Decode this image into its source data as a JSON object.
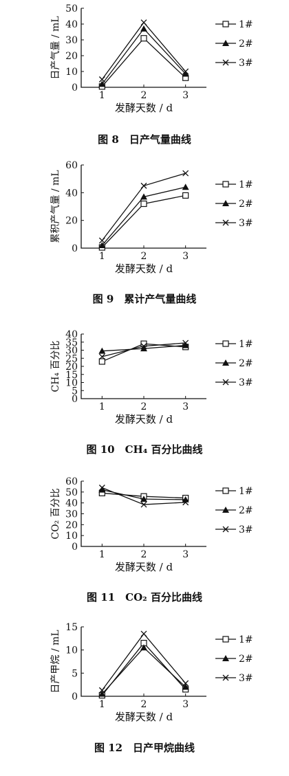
{
  "chart_data": [
    {
      "type": "line",
      "title": "图 8　日产气量曲线",
      "xlabel": "发酵天数 / d",
      "ylabel": "日产气量 / mL",
      "x": [
        1,
        2,
        3
      ],
      "xlim": [
        0.5,
        3.5
      ],
      "ylim": [
        0,
        50
      ],
      "yticks": [
        0,
        10,
        20,
        30,
        40,
        50
      ],
      "series": [
        {
          "name": "1#",
          "marker": "square",
          "values": [
            0.5,
            31,
            6
          ]
        },
        {
          "name": "2#",
          "marker": "triangle",
          "values": [
            2,
            37,
            8.5
          ]
        },
        {
          "name": "3#",
          "marker": "x",
          "values": [
            5,
            41,
            10
          ]
        }
      ],
      "legend": "right"
    },
    {
      "type": "line",
      "title": "图 9　累计产气量曲线",
      "xlabel": "发酵天数 / d",
      "ylabel": "累积产气量 / mL",
      "x": [
        1,
        2,
        3
      ],
      "xlim": [
        0.5,
        3.5
      ],
      "ylim": [
        0,
        60
      ],
      "yticks": [
        0,
        20,
        40,
        60
      ],
      "series": [
        {
          "name": "1#",
          "marker": "square",
          "values": [
            0.5,
            32,
            38
          ]
        },
        {
          "name": "2#",
          "marker": "triangle",
          "values": [
            2,
            37,
            44
          ]
        },
        {
          "name": "3#",
          "marker": "x",
          "values": [
            5.5,
            45,
            54
          ]
        }
      ],
      "legend": "right"
    },
    {
      "type": "line",
      "title": "图 10　CH₄ 百分比曲线",
      "xlabel": "发酵天数 / d",
      "ylabel": "CH₄ 百分比",
      "x": [
        1,
        2,
        3
      ],
      "xlim": [
        0.5,
        3.5
      ],
      "ylim": [
        0,
        40
      ],
      "yticks": [
        0,
        5,
        10,
        15,
        20,
        25,
        30,
        35,
        40
      ],
      "series": [
        {
          "name": "1#",
          "marker": "square",
          "values": [
            23,
            34,
            32
          ]
        },
        {
          "name": "2#",
          "marker": "triangle",
          "values": [
            29.5,
            31,
            33
          ]
        },
        {
          "name": "3#",
          "marker": "x",
          "values": [
            26,
            32.5,
            34.5
          ]
        }
      ],
      "legend": "right"
    },
    {
      "type": "line",
      "title": "图 11　CO₂ 百分比曲线",
      "xlabel": "发酵天数 / d",
      "ylabel": "CO₂ 百分比",
      "x": [
        1,
        2,
        3
      ],
      "xlim": [
        0.5,
        3.5
      ],
      "ylim": [
        0,
        60
      ],
      "yticks": [
        0,
        10,
        20,
        30,
        40,
        50,
        60
      ],
      "series": [
        {
          "name": "1#",
          "marker": "square",
          "values": [
            49,
            46,
            44.5
          ]
        },
        {
          "name": "2#",
          "marker": "triangle",
          "values": [
            52,
            43.5,
            43
          ]
        },
        {
          "name": "3#",
          "marker": "x",
          "values": [
            54,
            38.5,
            40.5
          ]
        }
      ],
      "legend": "right"
    },
    {
      "type": "line",
      "title": "图 12　日产甲烷曲线",
      "xlabel": "发酵天数 / d",
      "ylabel": "日产甲烷 / mL",
      "x": [
        1,
        2,
        3
      ],
      "xlim": [
        0.5,
        3.5
      ],
      "ylim": [
        0,
        15
      ],
      "yticks": [
        0,
        5,
        10,
        15
      ],
      "series": [
        {
          "name": "1#",
          "marker": "square",
          "values": [
            0.2,
            11.5,
            1.5
          ]
        },
        {
          "name": "2#",
          "marker": "triangle",
          "values": [
            0.5,
            10.5,
            2
          ]
        },
        {
          "name": "3#",
          "marker": "x",
          "values": [
            1.3,
            13.5,
            2.8
          ]
        }
      ],
      "legend": "right"
    }
  ]
}
